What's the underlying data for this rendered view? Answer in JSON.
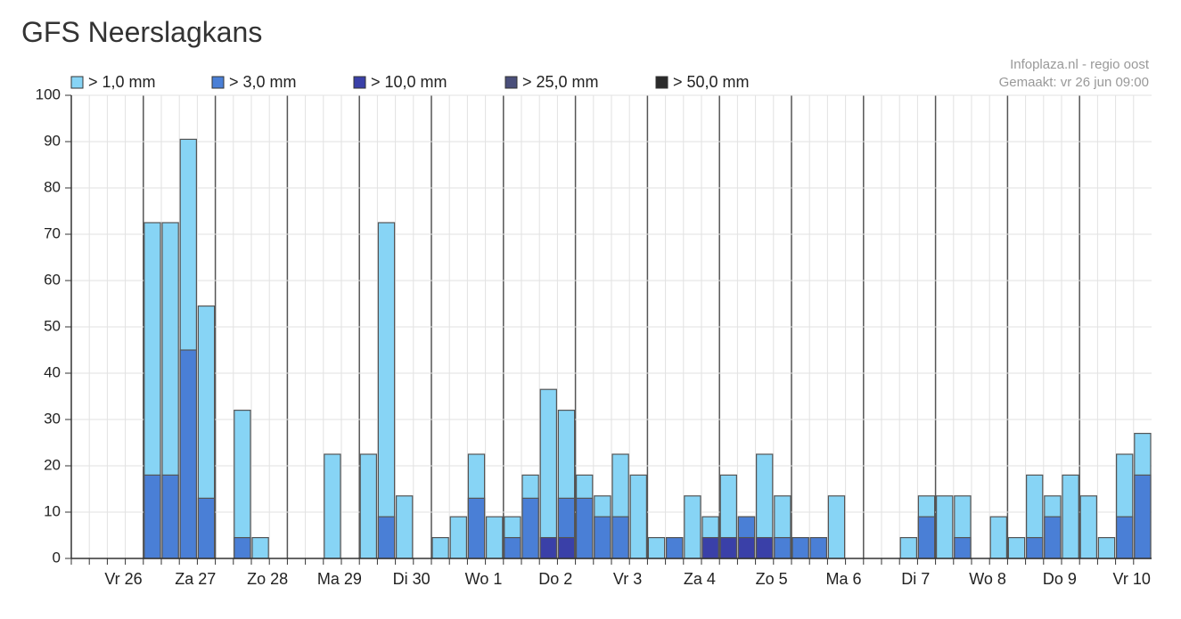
{
  "chart_data": {
    "type": "bar",
    "title": "GFS Neerslagkans",
    "source": "Infoplaza.nl - regio oost",
    "created": "Gemaakt: vr 26 jun 09:00",
    "categories": [
      null,
      null,
      "Vr 26",
      null,
      null,
      null,
      "Za 27",
      null,
      null,
      null,
      "Zo 28",
      null,
      null,
      null,
      "Ma 29",
      null,
      null,
      null,
      "Di 30",
      null,
      null,
      null,
      "Wo 1",
      null,
      null,
      null,
      "Do 2",
      null,
      null,
      null,
      "Vr 3",
      null,
      null,
      null,
      "Za 4",
      null,
      null,
      null,
      "Zo 5",
      null,
      null,
      null,
      "Ma 6",
      null,
      null,
      null,
      "Di 7",
      null,
      null,
      null,
      "Wo 8",
      null,
      null,
      null,
      "Do 9",
      null,
      null,
      null,
      "Vr 10",
      null
    ],
    "series": [
      {
        "name": "> 1,0 mm",
        "color": "#87d4f5",
        "values": [
          0,
          0,
          0,
          0,
          72.5,
          72.5,
          90.5,
          54.5,
          0,
          32,
          4.5,
          0,
          0,
          0,
          22.5,
          0,
          22.5,
          72.5,
          13.5,
          0,
          4.5,
          9,
          22.5,
          9,
          9,
          18,
          36.5,
          32,
          18,
          13.5,
          22.5,
          18,
          4.5,
          4.5,
          13.5,
          9,
          18,
          9,
          22.5,
          13.5,
          4.5,
          4.5,
          13.5,
          0,
          0,
          0,
          4.5,
          13.5,
          13.5,
          13.5,
          0,
          9,
          4.5,
          18,
          13.5,
          18,
          13.5,
          4.5,
          22.5,
          27
        ]
      },
      {
        "name": "> 3,0 mm",
        "color": "#4a7fd6",
        "values": [
          0,
          0,
          0,
          0,
          18,
          18,
          45,
          13,
          0,
          4.5,
          0,
          0,
          0,
          0,
          0,
          0,
          0,
          9,
          0,
          0,
          0,
          0,
          13,
          0,
          4.5,
          13,
          4.5,
          13,
          13,
          9,
          9,
          0,
          0,
          4.5,
          0,
          4.5,
          4.5,
          9,
          4.5,
          4.5,
          4.5,
          4.5,
          0,
          0,
          0,
          0,
          0,
          9,
          0,
          4.5,
          0,
          0,
          0,
          4.5,
          9,
          0,
          0,
          0,
          9,
          18
        ]
      },
      {
        "name": "> 10,0 mm",
        "color": "#3a40a8",
        "values": [
          0,
          0,
          0,
          0,
          0,
          0,
          0,
          0,
          0,
          0,
          0,
          0,
          0,
          0,
          0,
          0,
          0,
          0,
          0,
          0,
          0,
          0,
          0,
          0,
          0,
          0,
          4.5,
          4.5,
          0,
          0,
          0,
          0,
          0,
          0,
          0,
          4.5,
          4.5,
          4.5,
          4.5,
          0,
          0,
          0,
          0,
          0,
          0,
          0,
          0,
          0,
          0,
          0,
          0,
          0,
          0,
          0,
          0,
          0,
          0,
          0,
          0,
          0
        ]
      },
      {
        "name": "> 25,0 mm",
        "color": "#4a4f7a",
        "values": [
          0,
          0,
          0,
          0,
          0,
          0,
          0,
          0,
          0,
          0,
          0,
          0,
          0,
          0,
          0,
          0,
          0,
          0,
          0,
          0,
          0,
          0,
          0,
          0,
          0,
          0,
          0,
          0,
          0,
          0,
          0,
          0,
          0,
          0,
          0,
          0,
          0,
          0,
          0,
          0,
          0,
          0,
          0,
          0,
          0,
          0,
          0,
          0,
          0,
          0,
          0,
          0,
          0,
          0,
          0,
          0,
          0,
          0,
          0,
          0
        ]
      },
      {
        "name": "> 50,0 mm",
        "color": "#2a2a2a",
        "values": [
          0,
          0,
          0,
          0,
          0,
          0,
          0,
          0,
          0,
          0,
          0,
          0,
          0,
          0,
          0,
          0,
          0,
          0,
          0,
          0,
          0,
          0,
          0,
          0,
          0,
          0,
          0,
          0,
          0,
          0,
          0,
          0,
          0,
          0,
          0,
          0,
          0,
          0,
          0,
          0,
          0,
          0,
          0,
          0,
          0,
          0,
          0,
          0,
          0,
          0,
          0,
          0,
          0,
          0,
          0,
          0,
          0,
          0,
          0,
          0
        ]
      }
    ],
    "ylim": [
      0,
      100
    ],
    "yticks": [
      0,
      10,
      20,
      30,
      40,
      50,
      60,
      70,
      80,
      90,
      100
    ],
    "grid": true
  }
}
